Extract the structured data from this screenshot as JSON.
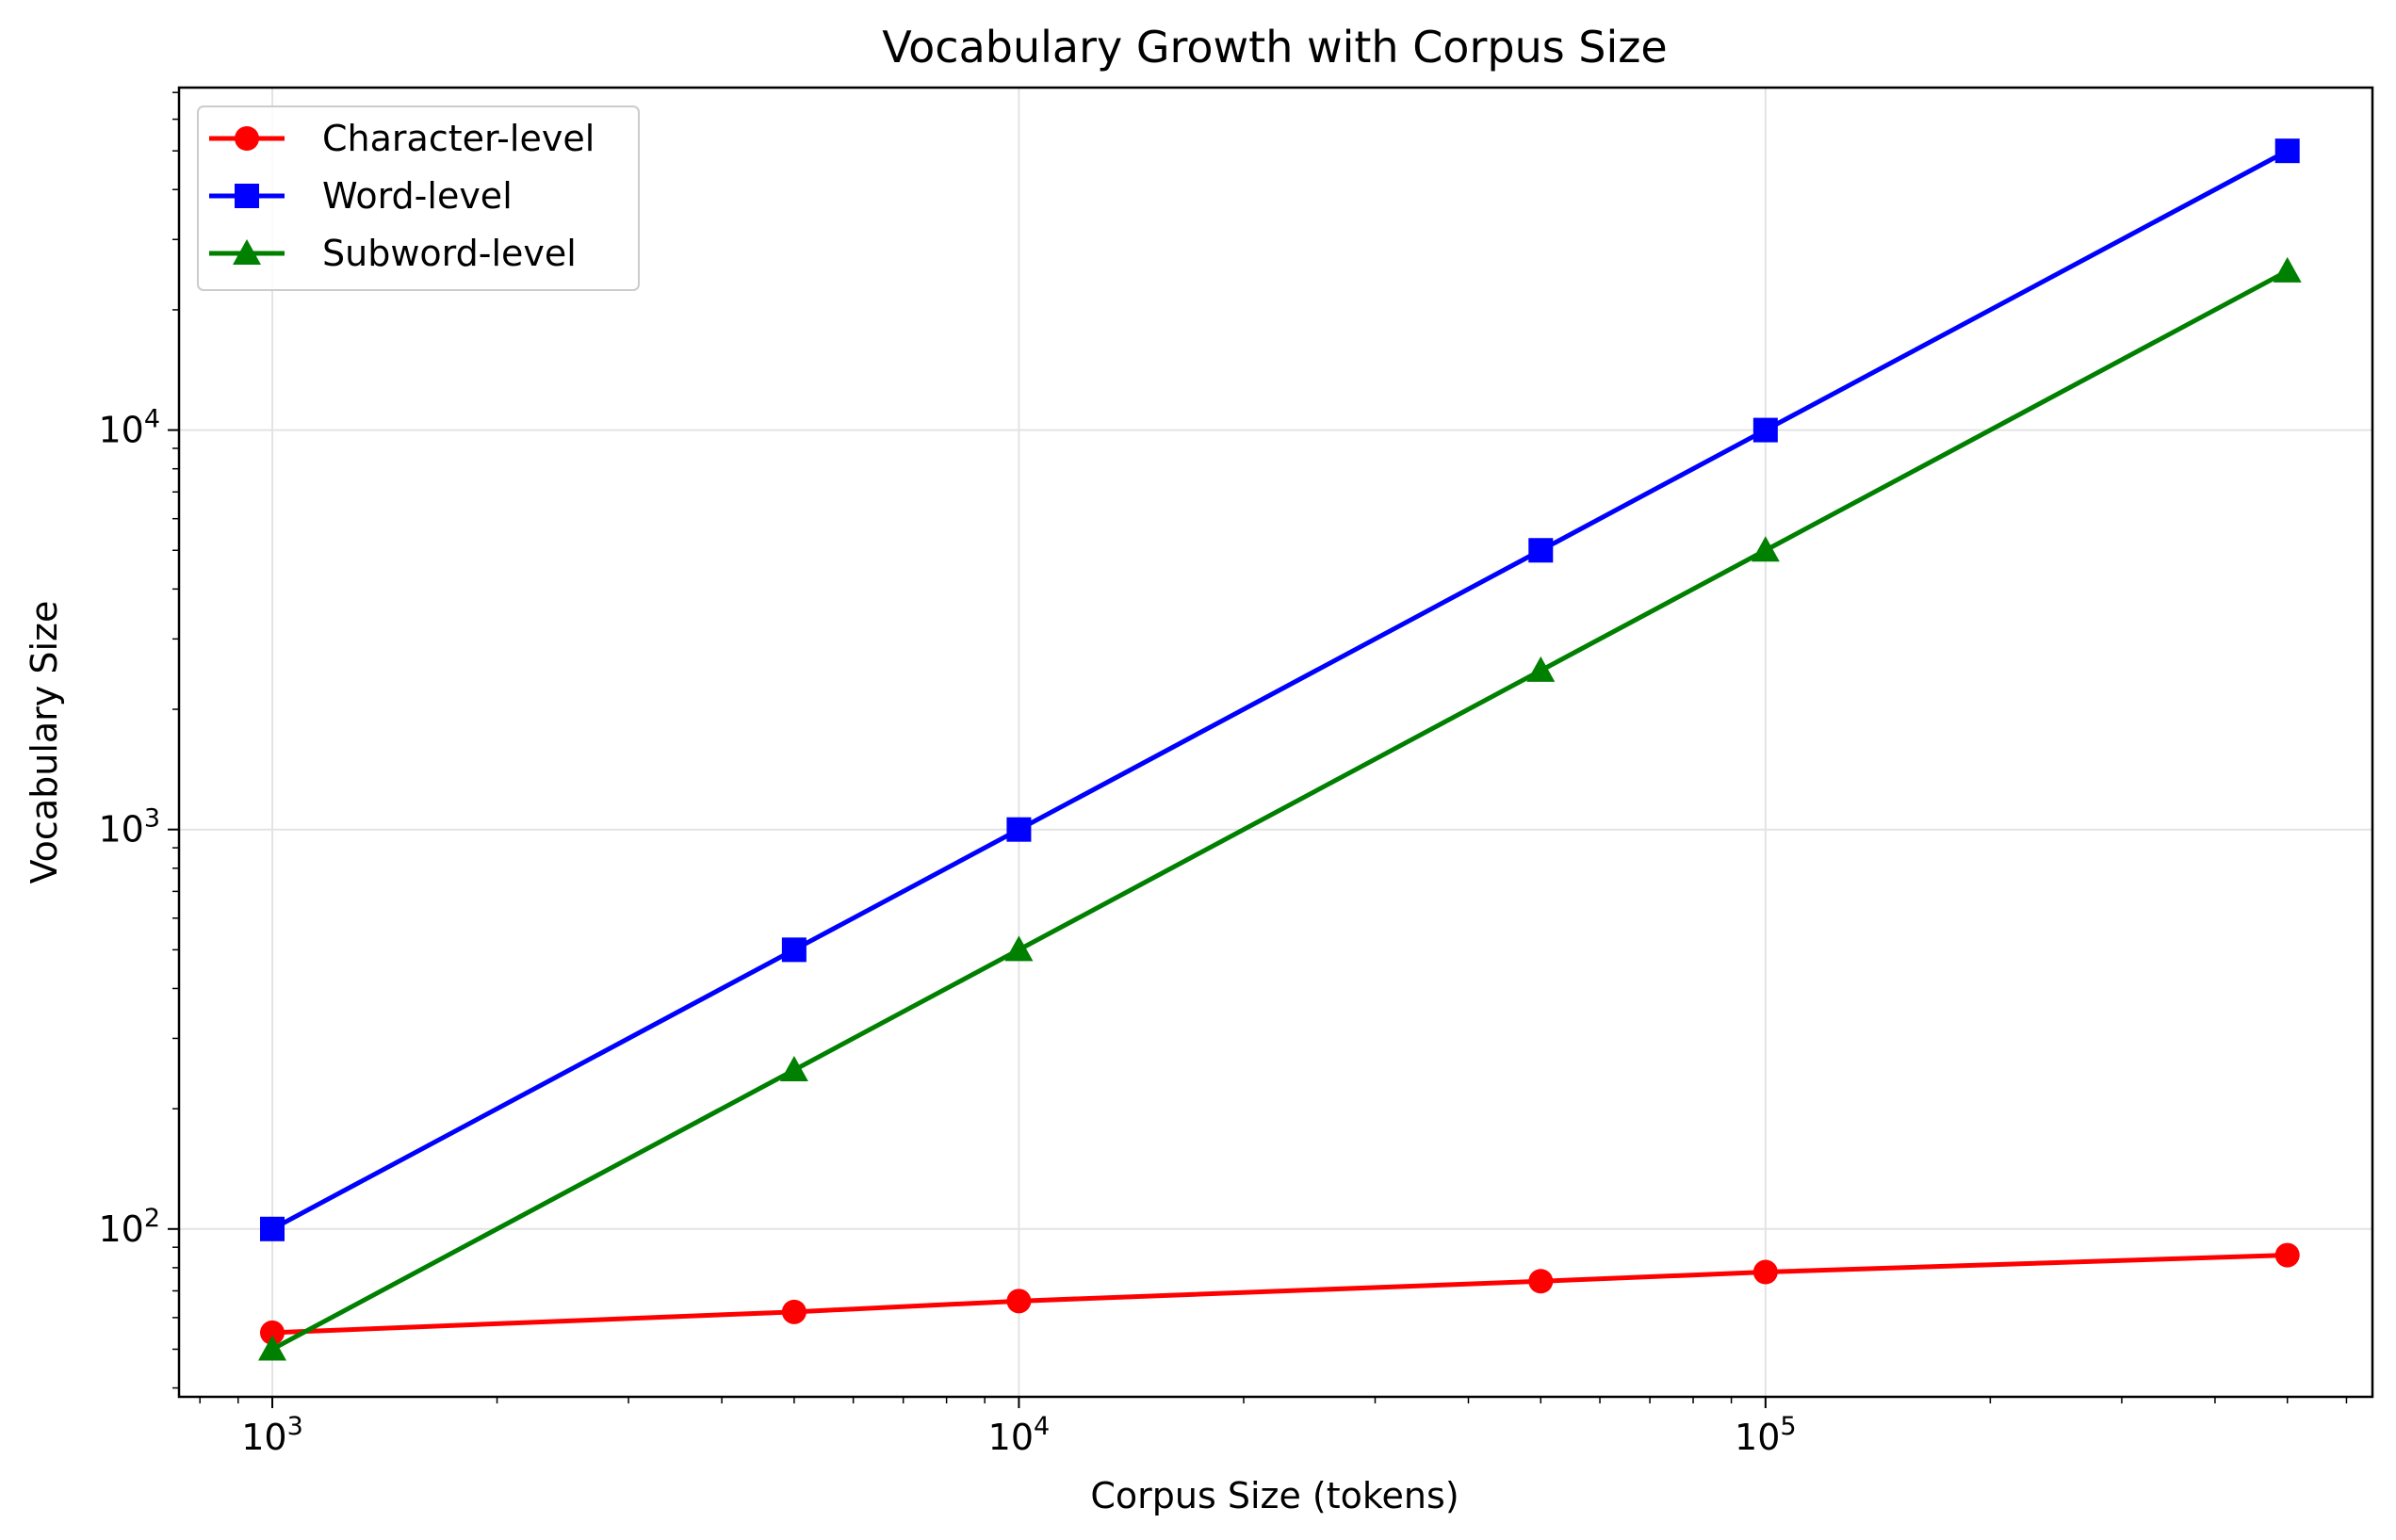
{
  "chart_data": {
    "type": "line",
    "title": "Vocabulary Growth with Corpus Size",
    "xlabel": "Corpus Size (tokens)",
    "ylabel": "Vocabulary Size",
    "xscale": "log",
    "yscale": "log",
    "xlim": [
      750,
      650000
    ],
    "ylim": [
      38,
      72000
    ],
    "x": [
      1000,
      5000,
      10000,
      50000,
      100000,
      500000
    ],
    "x_ticks": [
      {
        "value": 1000,
        "base": "10",
        "exp": "3"
      },
      {
        "value": 10000,
        "base": "10",
        "exp": "4"
      },
      {
        "value": 100000,
        "base": "10",
        "exp": "5"
      }
    ],
    "y_ticks": [
      {
        "value": 100,
        "base": "10",
        "exp": "2"
      },
      {
        "value": 1000,
        "base": "10",
        "exp": "3"
      },
      {
        "value": 10000,
        "base": "10",
        "exp": "4"
      }
    ],
    "grid": true,
    "legend_position": "upper-left",
    "series": [
      {
        "name": "Character-level",
        "marker": "circle",
        "color": "#ff0000",
        "values": [
          55,
          62,
          66,
          74,
          78,
          86
        ]
      },
      {
        "name": "Word-level",
        "marker": "square",
        "color": "#0000ff",
        "values": [
          100,
          500,
          1000,
          5000,
          10000,
          50000
        ]
      },
      {
        "name": "Subword-level",
        "marker": "triangle",
        "color": "#008000",
        "values": [
          50,
          250,
          500,
          2500,
          5000,
          25000
        ]
      }
    ]
  }
}
